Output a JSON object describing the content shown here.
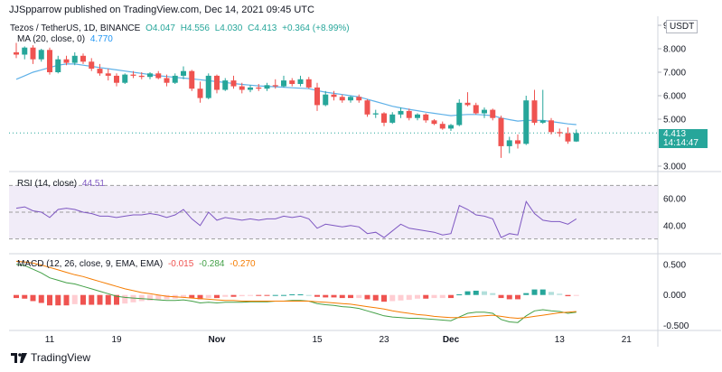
{
  "header": {
    "text": "JJSpparrow published on TradingView.com, Dec 14, 2021 09:45 UTC"
  },
  "main_legend": {
    "symbol": "Tezos / TetherUS, 1D, BINANCE",
    "open": "O4.047",
    "high": "H4.556",
    "low": "L4.030",
    "close": "C4.413",
    "change": "+0.364 (+8.99%)",
    "ma_label": "MA (20, close, 0)",
    "ma_value": "4.770"
  },
  "rsi_legend": {
    "label": "RSI (14, close)",
    "value": "44.51"
  },
  "macd_legend": {
    "label": "MACD (12, 26, close, 9, EMA, EMA)",
    "hist": "-0.015",
    "macd": "-0.284",
    "signal": "-0.270"
  },
  "price_badge": {
    "price": "4.413",
    "countdown": "14:14:47"
  },
  "ticker_badge": "USDT",
  "footer": {
    "brand": "TradingView"
  },
  "colors": {
    "up": "#26a69a",
    "down": "#ef5350",
    "ma": "#5fb1e8",
    "rsi": "#7e57c2",
    "macd": "#43a047",
    "signal": "#f57c00"
  },
  "chart_data": {
    "type": "candlestick",
    "title": "Tezos / TetherUS, 1D, BINANCE",
    "price_axis": {
      "ticks": [
        "9.000",
        "8.000",
        "7.000",
        "6.000",
        "5.000",
        "3.000"
      ],
      "range": [
        3.0,
        9.0
      ]
    },
    "x_axis": {
      "ticks": [
        "11",
        "19",
        "Nov",
        "15",
        "23",
        "Dec",
        "13",
        "21"
      ]
    },
    "candles": [
      [
        7.85,
        8.25,
        7.6,
        7.75
      ],
      [
        7.75,
        8.1,
        7.55,
        8.05
      ],
      [
        8.05,
        8.15,
        7.35,
        7.55
      ],
      [
        7.55,
        8.0,
        7.45,
        7.95
      ],
      [
        7.95,
        8.05,
        6.9,
        7.0
      ],
      [
        7.0,
        7.7,
        6.95,
        7.55
      ],
      [
        7.55,
        7.7,
        7.3,
        7.4
      ],
      [
        7.4,
        7.85,
        7.3,
        7.7
      ],
      [
        7.7,
        7.8,
        7.35,
        7.45
      ],
      [
        7.45,
        7.6,
        7.05,
        7.15
      ],
      [
        7.15,
        7.35,
        6.85,
        6.95
      ],
      [
        6.95,
        7.15,
        6.65,
        6.85
      ],
      [
        6.85,
        6.95,
        6.4,
        6.55
      ],
      [
        6.55,
        6.95,
        6.5,
        6.9
      ],
      [
        6.9,
        7.05,
        6.75,
        6.85
      ],
      [
        6.85,
        7.0,
        6.7,
        6.8
      ],
      [
        6.8,
        7.0,
        6.7,
        6.95
      ],
      [
        6.95,
        7.05,
        6.7,
        6.75
      ],
      [
        6.75,
        6.9,
        6.4,
        6.55
      ],
      [
        6.55,
        6.95,
        6.5,
        6.85
      ],
      [
        6.85,
        7.25,
        6.7,
        7.05
      ],
      [
        7.05,
        7.1,
        6.2,
        6.3
      ],
      [
        6.3,
        6.6,
        5.7,
        5.9
      ],
      [
        5.9,
        6.95,
        5.85,
        6.85
      ],
      [
        6.85,
        6.9,
        6.1,
        6.25
      ],
      [
        6.25,
        6.75,
        6.2,
        6.65
      ],
      [
        6.65,
        6.85,
        6.3,
        6.4
      ],
      [
        6.4,
        6.55,
        6.1,
        6.25
      ],
      [
        6.25,
        6.45,
        6.15,
        6.35
      ],
      [
        6.35,
        6.5,
        6.2,
        6.3
      ],
      [
        6.3,
        6.55,
        6.2,
        6.45
      ],
      [
        6.45,
        6.7,
        6.3,
        6.4
      ],
      [
        6.4,
        6.85,
        6.35,
        6.65
      ],
      [
        6.65,
        6.75,
        6.4,
        6.5
      ],
      [
        6.5,
        6.85,
        6.4,
        6.7
      ],
      [
        6.7,
        6.8,
        6.3,
        6.35
      ],
      [
        6.35,
        6.55,
        5.35,
        5.6
      ],
      [
        5.6,
        6.2,
        5.55,
        6.05
      ],
      [
        6.05,
        6.2,
        5.8,
        5.95
      ],
      [
        5.95,
        6.05,
        5.7,
        5.8
      ],
      [
        5.8,
        6.0,
        5.7,
        5.95
      ],
      [
        5.95,
        6.05,
        5.7,
        5.8
      ],
      [
        5.8,
        5.85,
        5.1,
        5.2
      ],
      [
        5.2,
        5.4,
        5.05,
        5.25
      ],
      [
        5.25,
        5.3,
        4.7,
        4.85
      ],
      [
        4.85,
        5.3,
        4.8,
        5.2
      ],
      [
        5.2,
        5.5,
        5.05,
        5.35
      ],
      [
        5.35,
        5.45,
        4.95,
        5.05
      ],
      [
        5.05,
        5.25,
        4.95,
        5.2
      ],
      [
        5.2,
        5.25,
        4.85,
        4.95
      ],
      [
        4.95,
        5.0,
        4.75,
        4.8
      ],
      [
        4.8,
        4.9,
        4.55,
        4.6
      ],
      [
        4.6,
        4.8,
        4.5,
        4.75
      ],
      [
        4.75,
        5.85,
        4.7,
        5.7
      ],
      [
        5.7,
        6.15,
        5.55,
        5.6
      ],
      [
        5.6,
        5.7,
        5.2,
        5.25
      ],
      [
        5.25,
        5.5,
        5.05,
        5.4
      ],
      [
        5.4,
        5.45,
        4.95,
        5.05
      ],
      [
        5.05,
        5.15,
        3.35,
        3.85
      ],
      [
        3.85,
        4.25,
        3.55,
        4.1
      ],
      [
        4.1,
        4.35,
        3.75,
        3.95
      ],
      [
        3.95,
        6.0,
        3.9,
        5.8
      ],
      [
        5.8,
        6.25,
        4.75,
        4.85
      ],
      [
        4.85,
        6.25,
        4.8,
        4.95
      ],
      [
        4.95,
        5.05,
        4.35,
        4.45
      ],
      [
        4.45,
        4.6,
        4.25,
        4.4
      ],
      [
        4.4,
        4.65,
        3.95,
        4.05
      ],
      [
        4.05,
        4.56,
        4.03,
        4.41
      ]
    ],
    "ma_series": [
      6.7,
      6.85,
      7.0,
      7.1,
      7.2,
      7.3,
      7.35,
      7.35,
      7.3,
      7.25,
      7.2,
      7.15,
      7.1,
      7.05,
      7.0,
      6.95,
      6.9,
      6.85,
      6.82,
      6.78,
      6.75,
      6.72,
      6.68,
      6.64,
      6.6,
      6.56,
      6.52,
      6.48,
      6.45,
      6.42,
      6.4,
      6.38,
      6.36,
      6.34,
      6.32,
      6.3,
      6.22,
      6.15,
      6.1,
      6.05,
      6.0,
      5.95,
      5.85,
      5.75,
      5.65,
      5.55,
      5.48,
      5.42,
      5.36,
      5.3,
      5.25,
      5.2,
      5.15,
      5.18,
      5.2,
      5.2,
      5.18,
      5.15,
      5.05,
      4.98,
      4.92,
      4.95,
      4.95,
      4.95,
      4.9,
      4.85,
      4.8,
      4.77
    ],
    "rsi": {
      "ticks": [
        "60.00",
        "40.00"
      ],
      "levels": [
        70,
        50,
        30
      ],
      "range": [
        25,
        75
      ],
      "values": [
        53,
        54,
        51,
        50,
        46,
        52,
        53,
        52,
        50,
        49,
        47,
        47,
        46,
        47,
        48,
        48,
        49,
        48,
        46,
        48,
        52,
        45,
        40,
        50,
        44,
        46,
        45,
        44,
        45,
        44,
        45,
        45,
        47,
        46,
        47,
        45,
        38,
        41,
        40,
        39,
        40,
        39,
        34,
        35,
        31,
        36,
        41,
        38,
        37,
        36,
        35,
        33,
        34,
        55,
        52,
        48,
        47,
        45,
        31,
        34,
        33,
        58,
        49,
        44,
        43,
        43,
        41,
        45
      ]
    },
    "macd": {
      "ticks": [
        "0.500",
        "0.000",
        "-0.500"
      ],
      "range": [
        -0.55,
        0.6
      ],
      "macd": [
        0.5,
        0.48,
        0.42,
        0.36,
        0.28,
        0.24,
        0.2,
        0.18,
        0.14,
        0.1,
        0.06,
        0.02,
        -0.02,
        -0.04,
        -0.05,
        -0.06,
        -0.07,
        -0.08,
        -0.09,
        -0.09,
        -0.08,
        -0.1,
        -0.13,
        -0.12,
        -0.13,
        -0.12,
        -0.12,
        -0.12,
        -0.11,
        -0.11,
        -0.11,
        -0.1,
        -0.1,
        -0.09,
        -0.09,
        -0.1,
        -0.14,
        -0.16,
        -0.17,
        -0.19,
        -0.2,
        -0.22,
        -0.26,
        -0.3,
        -0.34,
        -0.36,
        -0.37,
        -0.38,
        -0.38,
        -0.39,
        -0.4,
        -0.41,
        -0.42,
        -0.36,
        -0.3,
        -0.28,
        -0.28,
        -0.3,
        -0.4,
        -0.44,
        -0.45,
        -0.34,
        -0.26,
        -0.24,
        -0.26,
        -0.27,
        -0.3,
        -0.28
      ],
      "signal": [
        0.55,
        0.54,
        0.52,
        0.49,
        0.45,
        0.41,
        0.37,
        0.33,
        0.3,
        0.26,
        0.22,
        0.18,
        0.14,
        0.1,
        0.07,
        0.04,
        0.02,
        0.0,
        -0.02,
        -0.03,
        -0.04,
        -0.05,
        -0.06,
        -0.07,
        -0.08,
        -0.09,
        -0.09,
        -0.1,
        -0.1,
        -0.1,
        -0.1,
        -0.1,
        -0.1,
        -0.1,
        -0.1,
        -0.1,
        -0.11,
        -0.12,
        -0.13,
        -0.14,
        -0.15,
        -0.17,
        -0.19,
        -0.21,
        -0.23,
        -0.26,
        -0.28,
        -0.3,
        -0.32,
        -0.33,
        -0.35,
        -0.36,
        -0.37,
        -0.37,
        -0.36,
        -0.35,
        -0.34,
        -0.33,
        -0.35,
        -0.37,
        -0.38,
        -0.37,
        -0.35,
        -0.33,
        -0.31,
        -0.29,
        -0.28,
        -0.27
      ]
    }
  }
}
